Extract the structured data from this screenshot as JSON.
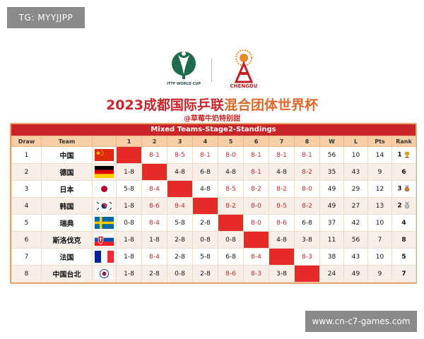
{
  "watermark": {
    "top": "TG: MYYJJPP",
    "bottom": "www.cn-c7-games.com"
  },
  "logos": {
    "ittf_label": "ITTF WORLD CUP",
    "chengdu_label": "CHENGDU"
  },
  "title": {
    "year": "2023",
    "part1": "成都国际乒联",
    "part2": "混合团体世界杯"
  },
  "subtitle": "@草莓牛奶特别甜",
  "table": {
    "caption": "Mixed Teams-Stage2-Standings",
    "headers": [
      "Draw",
      "Team",
      "",
      "1",
      "2",
      "3",
      "4",
      "5",
      "6",
      "7",
      "8",
      "W",
      "L",
      "Pts",
      "Rank"
    ],
    "rows": [
      {
        "draw": "1",
        "team": "中国",
        "flag": "china",
        "cells": [
          "",
          "8-1",
          "8-5",
          "8-1",
          "8-0",
          "8-1",
          "8-1",
          "8-1"
        ],
        "w": "56",
        "l": "10",
        "pts": "14",
        "rank": "1",
        "medal": "gold"
      },
      {
        "draw": "2",
        "team": "德国",
        "flag": "germany",
        "cells": [
          "1-8",
          "",
          "4-8",
          "6-8",
          "4-8",
          "8-1",
          "4-8",
          "8-2"
        ],
        "w": "35",
        "l": "43",
        "pts": "9",
        "rank": "6",
        "medal": ""
      },
      {
        "draw": "3",
        "team": "日本",
        "flag": "japan",
        "cells": [
          "5-8",
          "8-4",
          "",
          "4-8",
          "8-5",
          "8-2",
          "8-2",
          "8-0"
        ],
        "w": "49",
        "l": "29",
        "pts": "12",
        "rank": "3",
        "medal": "bronze"
      },
      {
        "draw": "4",
        "team": "韩国",
        "flag": "korea",
        "cells": [
          "1-8",
          "8-6",
          "8-4",
          "",
          "8-2",
          "8-0",
          "8-5",
          "8-2"
        ],
        "w": "49",
        "l": "27",
        "pts": "13",
        "rank": "2",
        "medal": "silver"
      },
      {
        "draw": "5",
        "team": "瑞典",
        "flag": "sweden",
        "cells": [
          "0-8",
          "8-4",
          "5-8",
          "2-8",
          "",
          "8-0",
          "8-6",
          "6-8"
        ],
        "w": "37",
        "l": "42",
        "pts": "10",
        "rank": "4",
        "medal": ""
      },
      {
        "draw": "6",
        "team": "斯洛伐克",
        "flag": "slovakia",
        "cells": [
          "1-8",
          "1-8",
          "2-8",
          "0-8",
          "0-8",
          "",
          "4-8",
          "3-8"
        ],
        "w": "11",
        "l": "56",
        "pts": "7",
        "rank": "8",
        "medal": ""
      },
      {
        "draw": "7",
        "team": "法国",
        "flag": "france",
        "cells": [
          "1-8",
          "8-4",
          "2-8",
          "5-8",
          "6-8",
          "8-4",
          "",
          "8-3"
        ],
        "w": "38",
        "l": "43",
        "pts": "10",
        "rank": "5",
        "medal": ""
      },
      {
        "draw": "8",
        "team": "中国台北",
        "flag": "tpe",
        "cells": [
          "1-8",
          "2-8",
          "0-8",
          "2-8",
          "8-6",
          "8-3",
          "3-8",
          ""
        ],
        "w": "24",
        "l": "49",
        "pts": "9",
        "rank": "7",
        "medal": ""
      }
    ]
  },
  "colors": {
    "winRed": "#c9252b",
    "diagonal": "#e62a27",
    "header": "#f6cfa7",
    "caption": "#c8242a"
  }
}
